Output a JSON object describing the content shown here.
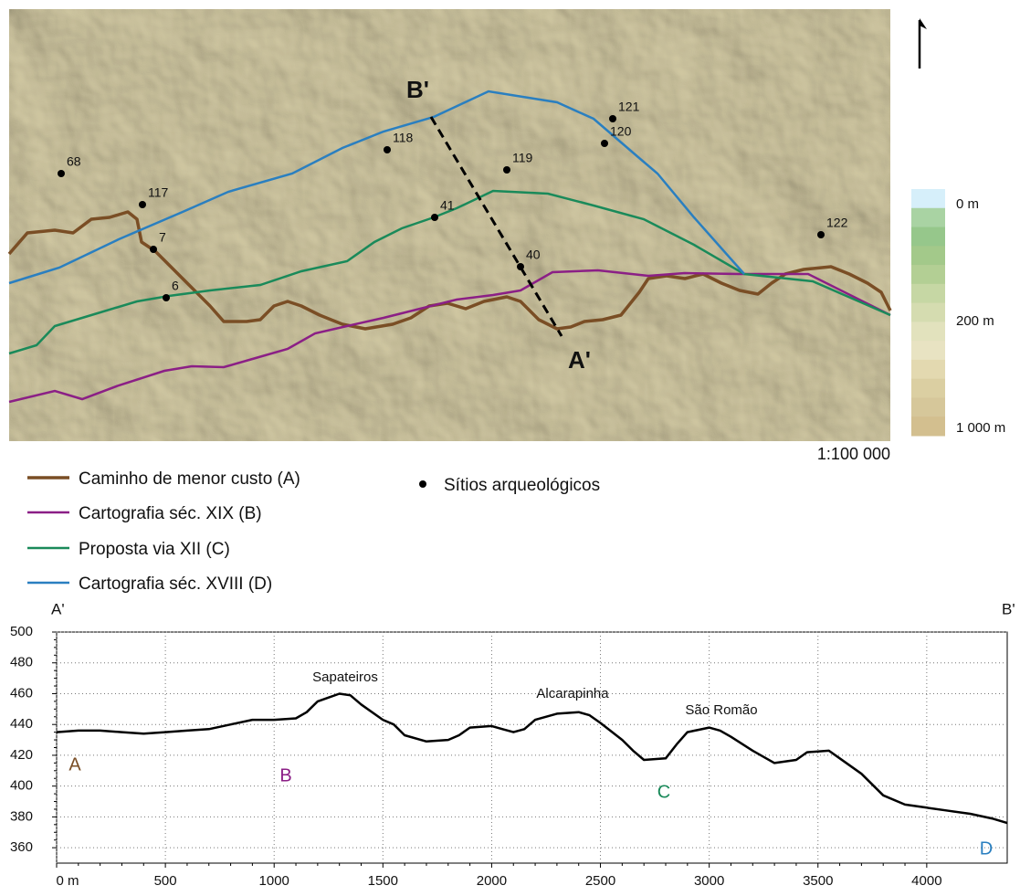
{
  "map": {
    "section_start": "B'",
    "section_end": "A'",
    "sites": [
      "68",
      "117",
      "7",
      "6",
      "118",
      "41",
      "119",
      "40",
      "120",
      "121",
      "122"
    ],
    "elevation_legend": [
      "0 m",
      "200 m",
      "1 000 m"
    ],
    "scale": "1:100 000"
  },
  "legend": {
    "routes": [
      {
        "name": "Caminho de menor custo (A)",
        "color": "#7a4e25"
      },
      {
        "name": "Cartografia séc. XIX (B)",
        "color": "#8b1f86"
      },
      {
        "name": "Proposta via XII (C)",
        "color": "#1a8a5a"
      },
      {
        "name": "Cartografia séc. XVIII (D)",
        "color": "#2a7fc0"
      }
    ],
    "sites": "Sítios arqueológicos"
  },
  "chart_data": {
    "type": "line",
    "start_label": "A'",
    "end_label": "B'",
    "annotations": [
      "Sapateiros",
      "Alcarapinha",
      "São Romão"
    ],
    "route_markers": [
      "A",
      "B",
      "C",
      "D"
    ],
    "x": [
      0,
      100,
      200,
      300,
      400,
      500,
      600,
      700,
      800,
      900,
      1000,
      1100,
      1150,
      1200,
      1300,
      1350,
      1400,
      1500,
      1550,
      1600,
      1700,
      1800,
      1850,
      1900,
      2000,
      2050,
      2100,
      2150,
      2200,
      2300,
      2400,
      2450,
      2500,
      2600,
      2650,
      2700,
      2800,
      2850,
      2900,
      3000,
      3050,
      3100,
      3200,
      3300,
      3400,
      3450,
      3550,
      3600,
      3700,
      3800,
      3900,
      4000,
      4100,
      4200,
      4300,
      4370
    ],
    "values": [
      435,
      436,
      436,
      435,
      434,
      435,
      436,
      437,
      440,
      443,
      443,
      444,
      448,
      455,
      460,
      459,
      453,
      443,
      440,
      433,
      429,
      430,
      433,
      438,
      439,
      437,
      435,
      437,
      443,
      447,
      448,
      446,
      441,
      430,
      423,
      417,
      418,
      427,
      435,
      438,
      436,
      432,
      423,
      415,
      417,
      422,
      423,
      418,
      408,
      394,
      388,
      386,
      384,
      382,
      379,
      376
    ],
    "color": "#000000",
    "xlim": [
      0,
      4370
    ],
    "ylim": [
      350,
      500
    ],
    "xticks": [
      {
        "value": 0,
        "label": "0 m"
      },
      500,
      1000,
      1500,
      2000,
      2500,
      3000,
      3500,
      4000
    ],
    "yticks": [
      360,
      380,
      400,
      420,
      440,
      460,
      480,
      500
    ],
    "grid": true
  }
}
